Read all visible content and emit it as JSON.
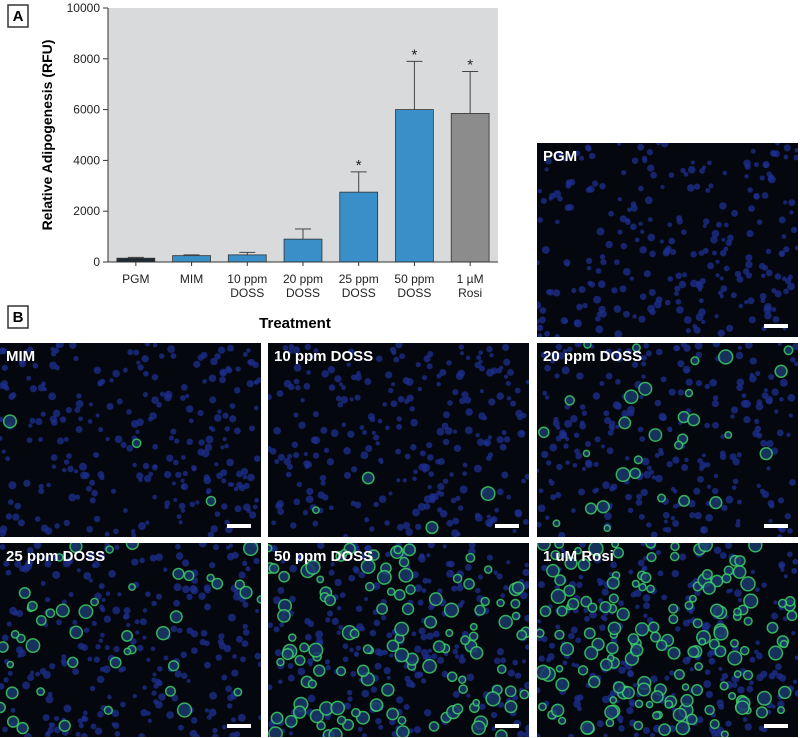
{
  "panel_a": "A",
  "panel_b": "B",
  "chart_data": {
    "type": "bar",
    "y_label": "Relative Adipogenesis (RFU)",
    "x_label": "Treatment",
    "categories": [
      "PGM",
      "MIM",
      "10 ppm DOSS",
      "20 ppm DOSS",
      "25 ppm DOSS",
      "50 ppm DOSS",
      "1 µM Rosi"
    ],
    "values": [
      150,
      250,
      280,
      900,
      2750,
      6000,
      5850
    ],
    "errors": [
      30,
      30,
      100,
      400,
      800,
      1900,
      1650
    ],
    "colors": [
      "#1f2a33",
      "#3a8fc8",
      "#3a8fc8",
      "#3a8fc8",
      "#3a8fc8",
      "#3a8fc8",
      "#8c8c8c"
    ],
    "significant": [
      false,
      false,
      false,
      false,
      true,
      true,
      true
    ],
    "significance_marker": "*",
    "ylim": [
      0,
      10000
    ],
    "yticks": [
      0,
      2000,
      4000,
      6000,
      8000,
      10000
    ],
    "background": "#d9dadb"
  },
  "images": [
    {
      "label": "PGM"
    },
    {
      "label": "MIM"
    },
    {
      "label": "10 ppm DOSS"
    },
    {
      "label": "20 ppm DOSS"
    },
    {
      "label": "25 ppm DOSS"
    },
    {
      "label": "50 ppm DOSS"
    },
    {
      "label": "1 uM Rosi"
    }
  ]
}
